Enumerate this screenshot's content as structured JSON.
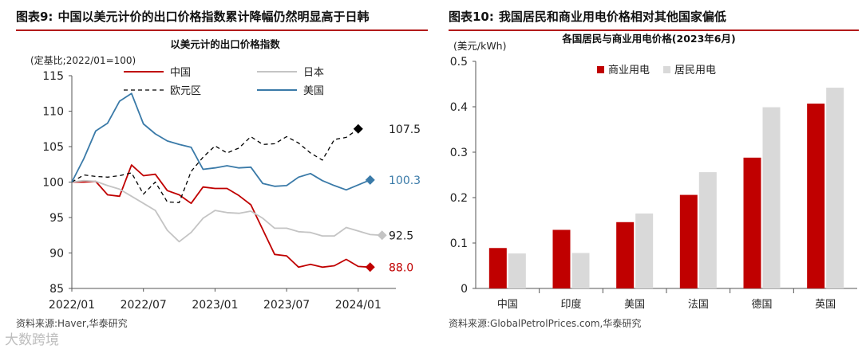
{
  "figures": [
    {
      "number": "图表9:",
      "title": "中国以美元计价的出口价格指数累计降幅仍然明显高于日韩",
      "source": "资料来源:Haver,华泰研究"
    },
    {
      "number": "图表10:",
      "title": "我国居民和商业用电价格相对其他国家偏低",
      "source": "资料来源:GlobalPetrolPrices.com,华泰研究"
    }
  ],
  "watermark": "大数跨境",
  "chart_data": [
    {
      "type": "line",
      "title": "以美元计的出口价格指数",
      "unit_note": "(定基比;2022/01=100)",
      "ylim": [
        85,
        115
      ],
      "yticks": [
        85,
        90,
        95,
        100,
        105,
        110,
        115
      ],
      "xticks": [
        {
          "label": "2022/01",
          "index": 0
        },
        {
          "label": "2022/07",
          "index": 6
        },
        {
          "label": "2023/01",
          "index": 12
        },
        {
          "label": "2023/07",
          "index": 18
        },
        {
          "label": "2024/01",
          "index": 24
        }
      ],
      "series": [
        {
          "name": "中国",
          "color": "#c00000",
          "dash": false,
          "values": [
            100,
            100,
            100.1,
            98.2,
            98,
            102.4,
            100.9,
            101.1,
            98.8,
            98.2,
            97,
            99.3,
            99.1,
            99.1,
            98.1,
            96.8,
            93.3,
            89.8,
            89.6,
            88,
            88.4,
            88,
            88.2,
            89.1,
            88.1,
            88
          ],
          "end_label": "88.0",
          "end_label_color": "#c00000"
        },
        {
          "name": "日本",
          "color": "#c4c4c4",
          "dash": false,
          "values": [
            100,
            100.2,
            100.1,
            99.5,
            99,
            98,
            97,
            96,
            93.2,
            91.6,
            92.9,
            94.9,
            96,
            95.7,
            95.6,
            95.9,
            94.9,
            93.5,
            93.5,
            93,
            92.9,
            92.4,
            92.4,
            93.6,
            93.1,
            92.6,
            92.5
          ],
          "end_label": "92.5",
          "end_label_color": "#222222"
        },
        {
          "name": "欧元区",
          "color": "#000000",
          "dash": true,
          "values": [
            100,
            101,
            100.8,
            100.7,
            100.9,
            101.3,
            98.3,
            100,
            97.2,
            97.1,
            101.5,
            103.5,
            105.1,
            104.1,
            104.8,
            106.4,
            105.3,
            105.4,
            106.4,
            105.5,
            104.1,
            103.1,
            106,
            106.3,
            107.5
          ],
          "end_label": "107.5",
          "end_label_color": "#222222"
        },
        {
          "name": "美国",
          "color": "#3a7aa8",
          "dash": false,
          "values": [
            100,
            103.3,
            107.2,
            108.3,
            111.4,
            112.5,
            108.2,
            106.8,
            105.8,
            105.3,
            104.9,
            101.8,
            102,
            102.3,
            102,
            102.1,
            99.8,
            99.4,
            99.5,
            100.7,
            101.2,
            100.2,
            99.5,
            98.9,
            99.6,
            100.3
          ],
          "end_label": "100.3",
          "end_label_color": "#3a7aa8"
        }
      ]
    },
    {
      "type": "bar",
      "title": "各国居民与商业用电价格(2023年6月)",
      "ylabel": "(美元/kWh)",
      "ylim": [
        0,
        0.5
      ],
      "yticks": [
        "0",
        "0.1",
        "0.2",
        "0.3",
        "0.4",
        "0.5"
      ],
      "categories": [
        "中国",
        "印度",
        "美国",
        "法国",
        "德国",
        "英国"
      ],
      "series": [
        {
          "name": "商业用电",
          "color": "#c00000",
          "values": [
            0.089,
            0.129,
            0.146,
            0.206,
            0.288,
            0.407
          ]
        },
        {
          "name": "居民用电",
          "color": "#d9d9d9",
          "values": [
            0.077,
            0.078,
            0.165,
            0.256,
            0.399,
            0.442
          ]
        }
      ]
    }
  ]
}
